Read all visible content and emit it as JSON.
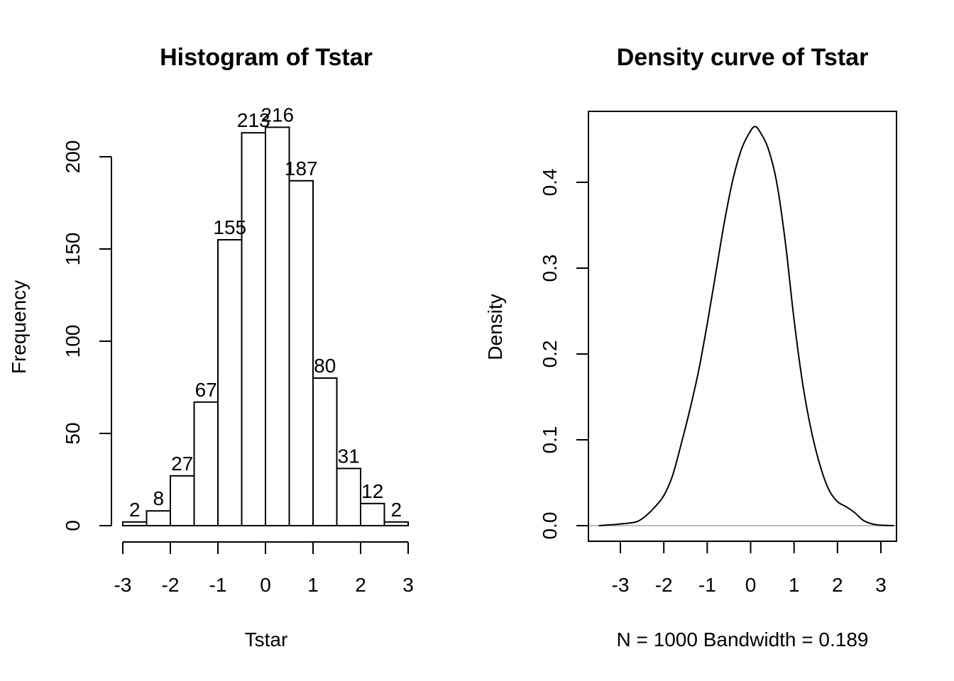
{
  "chart_data": [
    {
      "type": "bar",
      "title": "Histogram of Tstar",
      "xlabel": "Tstar",
      "ylabel": "Frequency",
      "bin_edges": [
        -3,
        -2.5,
        -2,
        -1.5,
        -1,
        -0.5,
        0,
        0.5,
        1,
        1.5,
        2,
        2.5,
        3
      ],
      "values": [
        2,
        8,
        27,
        67,
        155,
        213,
        216,
        187,
        80,
        31,
        12,
        2
      ],
      "bar_labels": [
        "2",
        "8",
        "27",
        "67",
        "155",
        "213",
        "216",
        "187",
        "80",
        "31",
        "12",
        "2"
      ],
      "xlim": [
        -3,
        3
      ],
      "ylim": [
        0,
        200
      ],
      "x_ticks": [
        -3,
        -2,
        -1,
        0,
        1,
        2,
        3
      ],
      "x_tick_labels": [
        "-3",
        "-2",
        "-1",
        "0",
        "1",
        "2",
        "3"
      ],
      "y_ticks": [
        0,
        50,
        100,
        150,
        200
      ],
      "y_tick_labels": [
        "0",
        "50",
        "100",
        "150",
        "200"
      ],
      "grid": false
    },
    {
      "type": "line",
      "title": "Density curve of Tstar",
      "xlabel": "N = 1000   Bandwidth = 0.189",
      "ylabel": "Density",
      "x": [
        -3.5,
        -3.2,
        -3.0,
        -2.8,
        -2.6,
        -2.4,
        -2.2,
        -2.0,
        -1.8,
        -1.6,
        -1.4,
        -1.2,
        -1.0,
        -0.8,
        -0.6,
        -0.4,
        -0.2,
        0.0,
        0.1,
        0.2,
        0.4,
        0.6,
        0.8,
        1.0,
        1.2,
        1.4,
        1.6,
        1.8,
        2.0,
        2.2,
        2.4,
        2.6,
        2.8,
        3.0,
        3.3
      ],
      "y": [
        0.0,
        0.001,
        0.002,
        0.003,
        0.005,
        0.012,
        0.022,
        0.035,
        0.058,
        0.095,
        0.135,
        0.18,
        0.235,
        0.295,
        0.355,
        0.405,
        0.44,
        0.46,
        0.465,
        0.46,
        0.44,
        0.4,
        0.33,
        0.24,
        0.165,
        0.11,
        0.07,
        0.042,
        0.028,
        0.022,
        0.015,
        0.006,
        0.002,
        0.0005,
        0.0
      ],
      "xlim": [
        -3.7,
        3.4
      ],
      "ylim": [
        -0.018,
        0.482
      ],
      "x_ticks": [
        -3,
        -2,
        -1,
        0,
        1,
        2,
        3
      ],
      "x_tick_labels": [
        "-3",
        "-2",
        "-1",
        "0",
        "1",
        "2",
        "3"
      ],
      "y_ticks": [
        0.0,
        0.1,
        0.2,
        0.3,
        0.4
      ],
      "y_tick_labels": [
        "0.0",
        "0.1",
        "0.2",
        "0.3",
        "0.4"
      ],
      "grid": false,
      "zero_line_color": "#bdbdbd"
    }
  ]
}
